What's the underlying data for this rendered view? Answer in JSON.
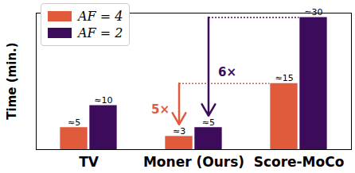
{
  "chart_data": {
    "type": "bar",
    "categories": [
      "TV",
      "Moner (Ours)",
      "Score-MoCo"
    ],
    "series": [
      {
        "name": "AF = 4",
        "color": "#e05a3c",
        "values": [
          5,
          3,
          15
        ],
        "value_labels": [
          "≈5",
          "≈3",
          "≈15"
        ]
      },
      {
        "name": "AF = 2",
        "color": "#3d0b5b",
        "values": [
          10,
          5,
          30
        ],
        "value_labels": [
          "≈10",
          "≈5",
          "≈30"
        ]
      }
    ],
    "y_label": "Time (min.)",
    "ylim": [
      0,
      31
    ],
    "yticks": [],
    "tick_labels": "x",
    "grid": false,
    "legend": "upper left",
    "data_labels": true,
    "annotations": [
      {
        "text": "5×",
        "series": "AF = 4",
        "category": "Moner (Ours)",
        "from": 15,
        "to": 3,
        "target": "Score-MoCo"
      },
      {
        "text": "6×",
        "series": "AF = 2",
        "category": "Moner (Ours)",
        "from": 30,
        "to": 5,
        "target": "Score-MoCo"
      }
    ]
  }
}
